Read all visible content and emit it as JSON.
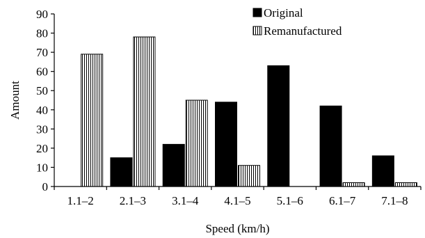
{
  "chart_data": {
    "type": "bar",
    "categories": [
      "1.1–2",
      "2.1–3",
      "3.1–4",
      "4.1–5",
      "5.1–6",
      "6.1–7",
      "7.1–8"
    ],
    "series": [
      {
        "name": "Original",
        "values": [
          0,
          15,
          22,
          44,
          63,
          42,
          16
        ],
        "color": "#000000",
        "pattern": "solid"
      },
      {
        "name": "Remanufactured",
        "values": [
          69,
          78,
          45,
          11,
          0,
          2,
          2
        ],
        "color": "#000000",
        "pattern": "vertical-stripes"
      }
    ],
    "title": "",
    "xlabel": "Speed (km/h)",
    "ylabel": "Amount",
    "ylim": [
      0,
      90
    ],
    "yticks": [
      0,
      10,
      20,
      30,
      40,
      50,
      60,
      70,
      80,
      90
    ],
    "grid": false,
    "legend_position": "top-right"
  }
}
